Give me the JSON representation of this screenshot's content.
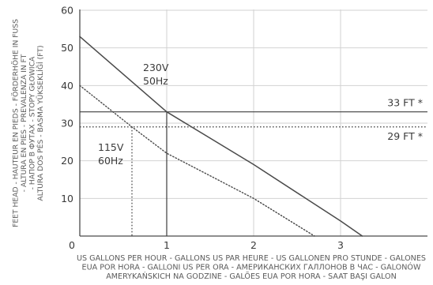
{
  "chart_data": {
    "type": "line",
    "xlim": [
      0,
      4
    ],
    "ylim": [
      0,
      60
    ],
    "x_ticks": [
      "0",
      "1",
      "2",
      "3"
    ],
    "y_ticks": [
      "10",
      "20",
      "30",
      "40",
      "50",
      "60"
    ],
    "ylabel_lines": [
      "FEET HEAD - HAUTEUR EN PIEDS - FÖRDERHÖHE IN FUSS",
      "- ALTURA EN PIES - PREVALENZA IN FT",
      "- НАПОР В ФУТАХ - STOPY GŁOWICA",
      "ALTURA DOS PÉS - BASMA YÜKSEKLİĞİ (FT)"
    ],
    "xlabel_lines": [
      "US GALLONS PER HOUR - GALLONS US PAR HEURE - US GALLONEN PRO STUNDE - GALONES",
      "EUA POR HORA - GALLONI US PER ORA - АМЕРИКАНСКИХ ГАЛЛОНОВ В ЧАС -  GALONÓW",
      "AMERYKAŃSKICH NA GODZINE - GALÕES EUA POR HORA - SAAT BAŞI GALON"
    ],
    "series": [
      {
        "label_lines": [
          "230V",
          "50Hz"
        ],
        "style": "solid",
        "color": "#4a4a4a",
        "x": [
          0,
          1,
          2,
          3,
          3.25
        ],
        "y": [
          53,
          33,
          19,
          4,
          0
        ]
      },
      {
        "label_lines": [
          "115V",
          "60Hz"
        ],
        "style": "dotted",
        "color": "#4a4a4a",
        "x": [
          0,
          0.6,
          1,
          2,
          2.7
        ],
        "y": [
          40,
          29,
          22,
          10,
          0
        ]
      }
    ],
    "reference_lines": [
      {
        "label": "33 FT *",
        "y": 33,
        "style": "solid",
        "x_at_curve": 1
      },
      {
        "label": "29 FT *",
        "y": 29,
        "style": "dotted",
        "x_at_curve": 0.6
      }
    ],
    "grid": true,
    "grid_color": "#d2d2d2",
    "background": "#ffffff"
  }
}
